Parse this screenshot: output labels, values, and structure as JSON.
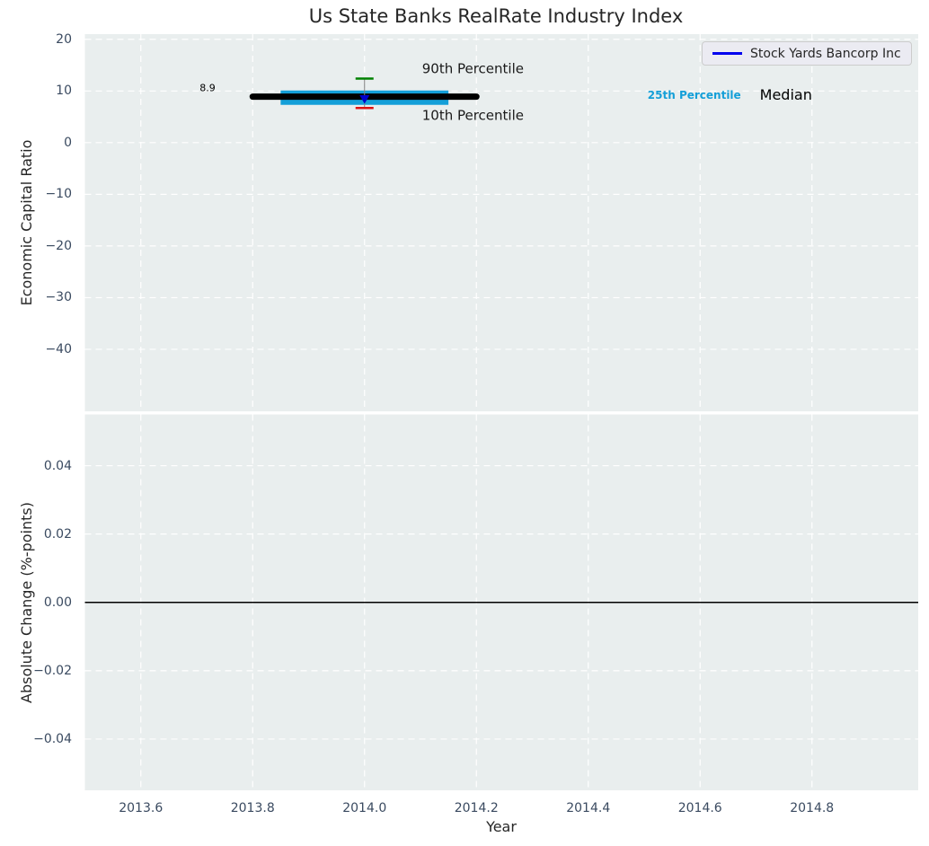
{
  "title": "Us State Banks RealRate Industry Index",
  "colors": {
    "plot_bg": "#e9eeee",
    "grid": "#ffffff",
    "tick_label": "#3a4a60",
    "axis_label": "#262626",
    "median_line": "#000000",
    "p25_band": "#149fd8",
    "p90_cap": "#008000",
    "p10_cap": "#dd1111",
    "errorbar_line": "#808080",
    "company_marker": "#0000cc",
    "legend_line": "#0000ee",
    "legend_bg": "#ebebf2",
    "legend_border": "#cccccc",
    "p25_text": "#149fd8",
    "zero_line": "#000000"
  },
  "chart_data": [
    {
      "type": "line",
      "subplot": "economic-capital-ratio",
      "title": "Us State Banks RealRate Industry Index",
      "ylabel": "Economic Capital Ratio",
      "xlim": [
        2013.5,
        2014.99
      ],
      "ylim": [
        -52,
        21
      ],
      "grid": true,
      "yticks": [
        20,
        10,
        0,
        -10,
        -20,
        -30,
        -40
      ],
      "yticklabels": [
        "20",
        "10",
        "0",
        "−10",
        "−20",
        "−30",
        "−40"
      ],
      "xticks": [
        2013.6,
        2013.8,
        2014.0,
        2014.2,
        2014.4,
        2014.6,
        2014.8
      ],
      "xticklabels": [
        "2013.6",
        "2013.8",
        "2014.0",
        "2014.2",
        "2014.4",
        "2014.6",
        "2014.8"
      ],
      "legend": {
        "position": "upper right",
        "entries": [
          {
            "label": "Stock Yards Bancorp Inc",
            "color": "#0000ee"
          }
        ]
      },
      "series": [
        {
          "name": "Stock Yards Bancorp Inc",
          "marker": "triangle-down",
          "x": [
            2014.0
          ],
          "y": [
            8.9
          ],
          "point_label": "8.9"
        }
      ],
      "industry_stats": {
        "year": 2014.0,
        "median": 8.9,
        "p25": 8.7,
        "p90": 12.4,
        "p10": 6.7,
        "median_span": [
          2013.8,
          2014.2
        ],
        "p25_span": [
          2013.85,
          2014.15
        ]
      },
      "annotations": [
        {
          "id": "point-value",
          "text": "8.9"
        },
        {
          "id": "p90-label",
          "text": "90th Percentile"
        },
        {
          "id": "p10-label",
          "text": "10th Percentile"
        },
        {
          "id": "p25-label",
          "text": "25th Percentile"
        },
        {
          "id": "median-label",
          "text": "Median"
        }
      ]
    },
    {
      "type": "line",
      "subplot": "absolute-change",
      "ylabel": "Absolute Change (%-points)",
      "xlabel": "Year",
      "xlim": [
        2013.5,
        2014.99
      ],
      "ylim": [
        -0.055,
        0.055
      ],
      "grid": true,
      "yticks": [
        0.04,
        0.02,
        0.0,
        -0.02,
        -0.04
      ],
      "yticklabels": [
        "0.04",
        "0.02",
        "0.00",
        "−0.02",
        "−0.04"
      ],
      "xticks": [
        2013.6,
        2013.8,
        2014.0,
        2014.2,
        2014.4,
        2014.6,
        2014.8
      ],
      "xticklabels": [
        "2013.6",
        "2013.8",
        "2014.0",
        "2014.2",
        "2014.4",
        "2014.6",
        "2014.8"
      ],
      "zero_line": 0.0
    }
  ]
}
